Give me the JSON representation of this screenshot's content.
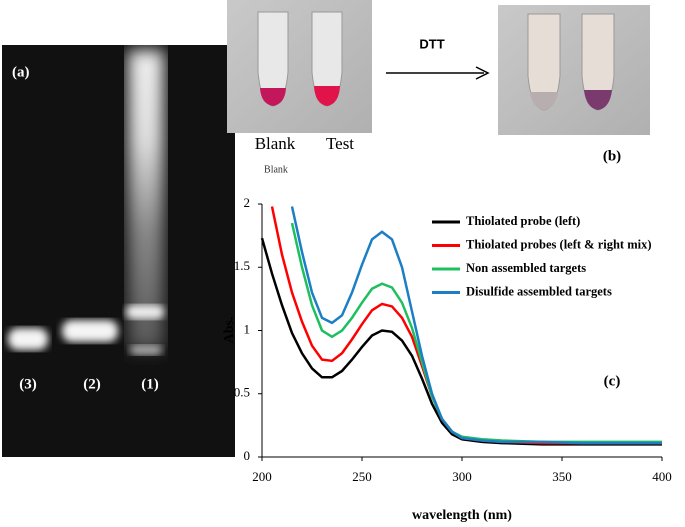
{
  "panel_a": {
    "label": "(a)",
    "lanes": [
      "(3)",
      "(2)",
      "(1)"
    ]
  },
  "panel_b": {
    "label": "(b)",
    "tube_labels": [
      "Blank",
      "Test"
    ],
    "caption": "Blank",
    "arrow_label": "DTT"
  },
  "chart_data": {
    "type": "line",
    "panel_label": "(c)",
    "x_label": "wavelength (nm)",
    "y_label": "Abs.",
    "x": [
      200,
      205,
      210,
      215,
      220,
      225,
      230,
      235,
      240,
      245,
      250,
      255,
      260,
      265,
      270,
      275,
      280,
      285,
      290,
      295,
      300,
      310,
      320,
      340,
      360,
      380,
      400
    ],
    "series": [
      {
        "name": "Thiolated probe (left)",
        "color": "#000000",
        "values": [
          1.73,
          1.45,
          1.2,
          0.98,
          0.82,
          0.7,
          0.63,
          0.63,
          0.68,
          0.77,
          0.87,
          0.96,
          1.0,
          0.99,
          0.92,
          0.8,
          0.62,
          0.42,
          0.27,
          0.18,
          0.14,
          0.12,
          0.11,
          0.1,
          0.1,
          0.1,
          0.1
        ]
      },
      {
        "name": "Thiolated probes (left & right mix)",
        "color": "#ff0000",
        "values": [
          null,
          1.98,
          1.6,
          1.3,
          1.07,
          0.88,
          0.77,
          0.76,
          0.82,
          0.93,
          1.05,
          1.16,
          1.21,
          1.19,
          1.1,
          0.95,
          0.72,
          0.48,
          0.3,
          0.2,
          0.15,
          0.13,
          0.12,
          0.11,
          0.11,
          0.11,
          0.11
        ]
      },
      {
        "name": "Non assembled targets",
        "color": "#1fbf5f",
        "values": [
          null,
          null,
          null,
          1.85,
          1.5,
          1.2,
          1.0,
          0.95,
          1.0,
          1.1,
          1.22,
          1.33,
          1.37,
          1.34,
          1.22,
          1.02,
          0.75,
          0.48,
          0.3,
          0.2,
          0.16,
          0.14,
          0.13,
          0.12,
          0.12,
          0.12,
          0.12
        ]
      },
      {
        "name": "Disulfide assembled targets",
        "color": "#1c7fc4",
        "values": [
          null,
          null,
          null,
          1.98,
          1.62,
          1.3,
          1.1,
          1.06,
          1.12,
          1.3,
          1.52,
          1.72,
          1.78,
          1.72,
          1.5,
          1.15,
          0.8,
          0.5,
          0.3,
          0.2,
          0.15,
          0.13,
          0.12,
          0.12,
          0.11,
          0.11,
          0.11
        ]
      }
    ],
    "xlim": [
      200,
      400
    ],
    "xticks": [
      200,
      250,
      300,
      350,
      400
    ],
    "ylim": [
      0,
      2
    ],
    "yticks": [
      0,
      0.5,
      1,
      1.5,
      2
    ]
  }
}
